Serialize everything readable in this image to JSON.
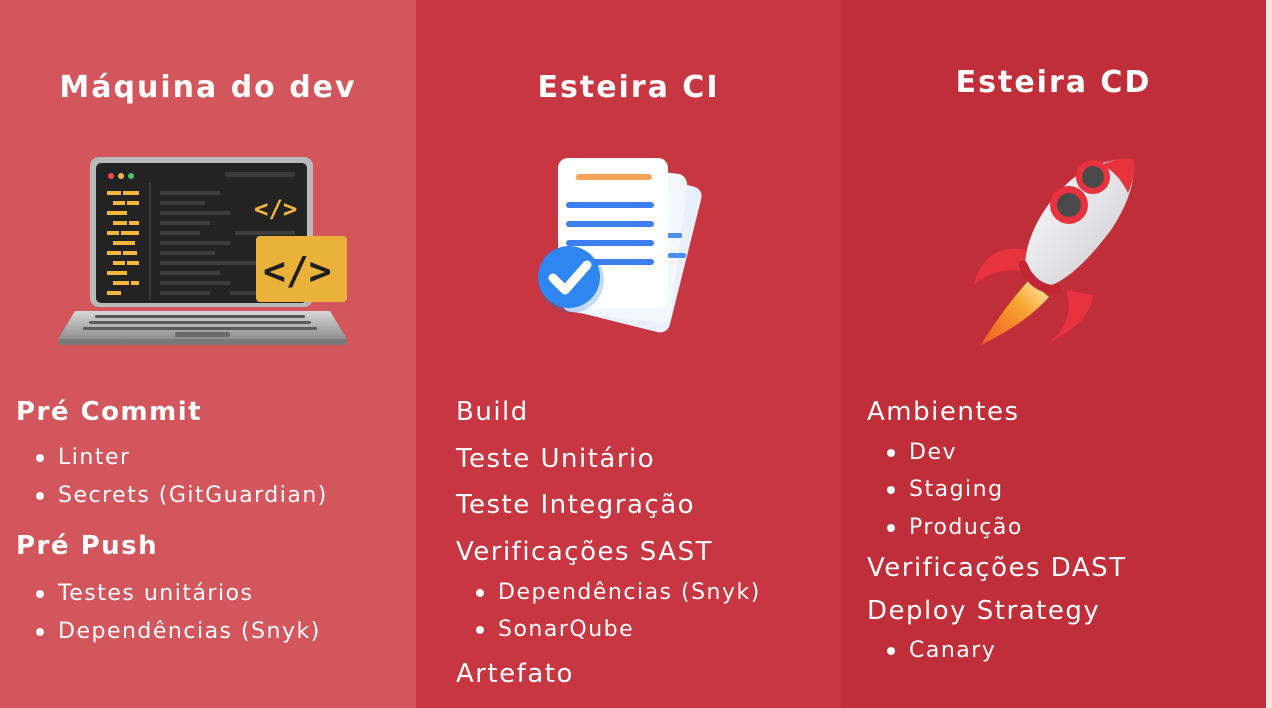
{
  "columns": [
    {
      "title": "Máquina do dev",
      "illustration": "laptop-code-icon",
      "sections": [
        {
          "heading": "Pré Commit",
          "items": [
            "Linter",
            "Secrets (GitGuardian)"
          ]
        },
        {
          "heading": "Pré Push",
          "items": [
            "Testes unitários",
            "Dependências (Snyk)"
          ]
        }
      ]
    },
    {
      "title": "Esteira CI",
      "illustration": "document-check-icon",
      "steps": [
        "Build",
        "Teste Unitário",
        "Teste Integração",
        "Verificações SAST",
        "Artefato"
      ],
      "sast_items": [
        "Dependências (Snyk)",
        "SonarQube"
      ]
    },
    {
      "title": "Esteira CD",
      "illustration": "rocket-icon",
      "steps": [
        "Ambientes",
        "Verificações DAST",
        "Deploy Strategy"
      ],
      "environments": [
        "Dev",
        "Staging",
        "Produção"
      ],
      "strategies": [
        "Canary"
      ]
    }
  ],
  "colors": {
    "column1_bg": "#d2565c",
    "column2_bg": "#c73641",
    "column3_bg": "#c02e3a",
    "text": "#ffffff",
    "code_yellow": "#f4b73c",
    "check_blue": "#2f86f0",
    "rocket_red": "#e8323e"
  }
}
